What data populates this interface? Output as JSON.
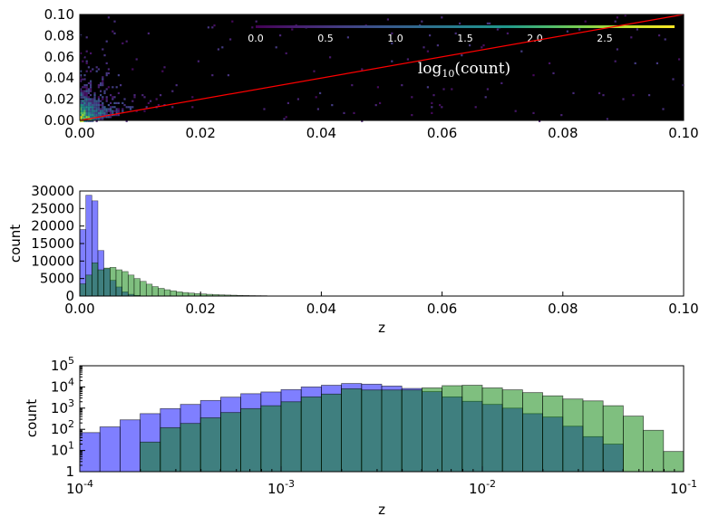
{
  "chart_data": [
    {
      "type": "heatmap",
      "xlim": [
        0,
        0.1
      ],
      "ylim": [
        0,
        0.1
      ],
      "x_ticks": [
        "0.00",
        "0.02",
        "0.04",
        "0.06",
        "0.08",
        "0.10"
      ],
      "y_ticks": [
        "0.00",
        "0.02",
        "0.04",
        "0.06",
        "0.08",
        "0.10"
      ],
      "background": "#000000",
      "colormap": "viridis",
      "colorbar": {
        "label_base": "log",
        "label_sub": "10",
        "label_rest": "(count)",
        "range": [
          0,
          3.0
        ],
        "ticks": [
          "0.0",
          "0.5",
          "1.0",
          "1.5",
          "2.0",
          "2.5"
        ]
      },
      "reference_line": {
        "from": [
          0,
          0
        ],
        "to": [
          0.1,
          0.1
        ],
        "color": "#ff0000"
      },
      "density_summary": "counts concentrated near z < 0.01 on both axes, peak at about log10(count)=3 near the origin"
    },
    {
      "type": "bar",
      "xlabel": "z",
      "ylabel": "count",
      "xlim": [
        0,
        0.1
      ],
      "ylim": [
        0,
        30000
      ],
      "x_ticks": [
        "0.00",
        "0.02",
        "0.04",
        "0.06",
        "0.08",
        "0.10"
      ],
      "y_ticks": [
        "0",
        "5000",
        "10000",
        "15000",
        "20000",
        "25000",
        "30000"
      ],
      "bin_width": 0.001,
      "series": [
        {
          "color": "#0000ff",
          "bin_starts": [
            0,
            0.001,
            0.002,
            0.003,
            0.004,
            0.005,
            0.006,
            0.007,
            0.008,
            0.009
          ],
          "values": [
            19000,
            28800,
            27200,
            13000,
            7800,
            4500,
            2600,
            1200,
            500,
            200
          ]
        },
        {
          "color": "#008000",
          "bin_starts": [
            0,
            0.001,
            0.002,
            0.003,
            0.004,
            0.005,
            0.006,
            0.007,
            0.008,
            0.009,
            0.01,
            0.011,
            0.012,
            0.013,
            0.014,
            0.015,
            0.016,
            0.017,
            0.018,
            0.019,
            0.02,
            0.021,
            0.022,
            0.023,
            0.024,
            0.025,
            0.026,
            0.027,
            0.028,
            0.029,
            0.03
          ],
          "values": [
            3500,
            6000,
            9500,
            7500,
            8000,
            8200,
            7500,
            7000,
            6000,
            5000,
            4200,
            3400,
            2700,
            2200,
            1800,
            1500,
            1200,
            1000,
            850,
            700,
            600,
            500,
            420,
            350,
            300,
            250,
            200,
            170,
            140,
            120,
            100
          ]
        }
      ]
    },
    {
      "type": "bar",
      "xlabel": "z",
      "ylabel": "count",
      "xscale": "log",
      "yscale": "log",
      "xlim": [
        0.0001,
        0.1
      ],
      "ylim": [
        1,
        100000
      ],
      "x_ticks": [
        {
          "base": "10",
          "exp": "-4"
        },
        {
          "base": "10",
          "exp": "-3"
        },
        {
          "base": "10",
          "exp": "-2"
        },
        {
          "base": "10",
          "exp": "-1"
        }
      ],
      "y_ticks": [
        {
          "base": "1",
          "exp": "0"
        },
        {
          "base": "10",
          "exp": "1"
        },
        {
          "base": "10",
          "exp": "2"
        },
        {
          "base": "10",
          "exp": "3"
        },
        {
          "base": "10",
          "exp": "4"
        },
        {
          "base": "10",
          "exp": "5"
        }
      ],
      "bins_per_decade": 10,
      "series": [
        {
          "color": "#0000ff",
          "values": [
            70,
            130,
            280,
            550,
            950,
            1500,
            2300,
            3300,
            4800,
            5800,
            7500,
            10000,
            12000,
            14500,
            13500,
            11000,
            8500,
            6000,
            3400,
            2100,
            1500,
            1000,
            550,
            380,
            140,
            45,
            20
          ]
        },
        {
          "color": "#008000",
          "values": [
            1,
            1,
            1,
            25,
            120,
            190,
            350,
            620,
            950,
            1300,
            2000,
            3400,
            4600,
            8200,
            7200,
            7200,
            7200,
            9000,
            11500,
            12000,
            9000,
            7300,
            5400,
            3800,
            2700,
            2200,
            1300,
            420,
            90,
            9
          ]
        }
      ]
    }
  ]
}
